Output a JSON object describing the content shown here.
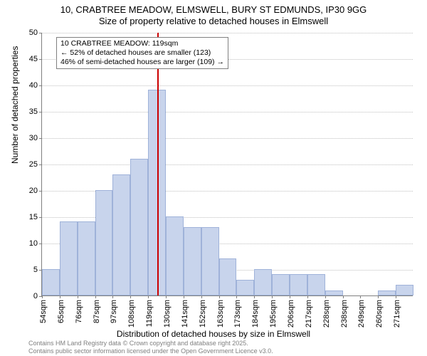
{
  "title": {
    "line1": "10, CRABTREE MEADOW, ELMSWELL, BURY ST EDMUNDS, IP30 9GG",
    "line2": "Size of property relative to detached houses in Elmswell"
  },
  "chart": {
    "type": "histogram",
    "background_color": "#ffffff",
    "grid_color": "#c0c0c0",
    "axis_color": "#808080",
    "bar_fill": "#c8d4ec",
    "bar_border": "#9fb2d9",
    "marker_line_color": "#cc0000",
    "ylabel": "Number of detached properties",
    "xlabel": "Distribution of detached houses by size in Elmswell",
    "label_fontsize": 12,
    "tick_fontsize": 11,
    "ylim": [
      0,
      50
    ],
    "ytick_step": 5,
    "yticks": [
      0,
      5,
      10,
      15,
      20,
      25,
      30,
      35,
      40,
      45,
      50
    ],
    "x_tick_labels": [
      "54sqm",
      "65sqm",
      "76sqm",
      "87sqm",
      "97sqm",
      "108sqm",
      "119sqm",
      "130sqm",
      "141sqm",
      "152sqm",
      "163sqm",
      "173sqm",
      "184sqm",
      "195sqm",
      "206sqm",
      "217sqm",
      "228sqm",
      "238sqm",
      "249sqm",
      "260sqm",
      "271sqm"
    ],
    "values": [
      5,
      14,
      14,
      20,
      23,
      26,
      39,
      15,
      13,
      13,
      7,
      3,
      5,
      4,
      4,
      4,
      1,
      0,
      0,
      1,
      2
    ],
    "marker_bin_index": 6,
    "bar_width_ratio": 1.0
  },
  "annotation": {
    "line1": "10 CRABTREE MEADOW: 119sqm",
    "line2": "← 52% of detached houses are smaller (123)",
    "line3": "46% of semi-detached houses are larger (109) →",
    "box_border": "#808080",
    "box_bg": "#ffffff",
    "fontsize": 10.5
  },
  "attribution": {
    "line1": "Contains HM Land Registry data © Crown copyright and database right 2025.",
    "line2": "Contains public sector information licensed under the Open Government Licence v3.0.",
    "color": "#808080",
    "fontsize": 9
  }
}
